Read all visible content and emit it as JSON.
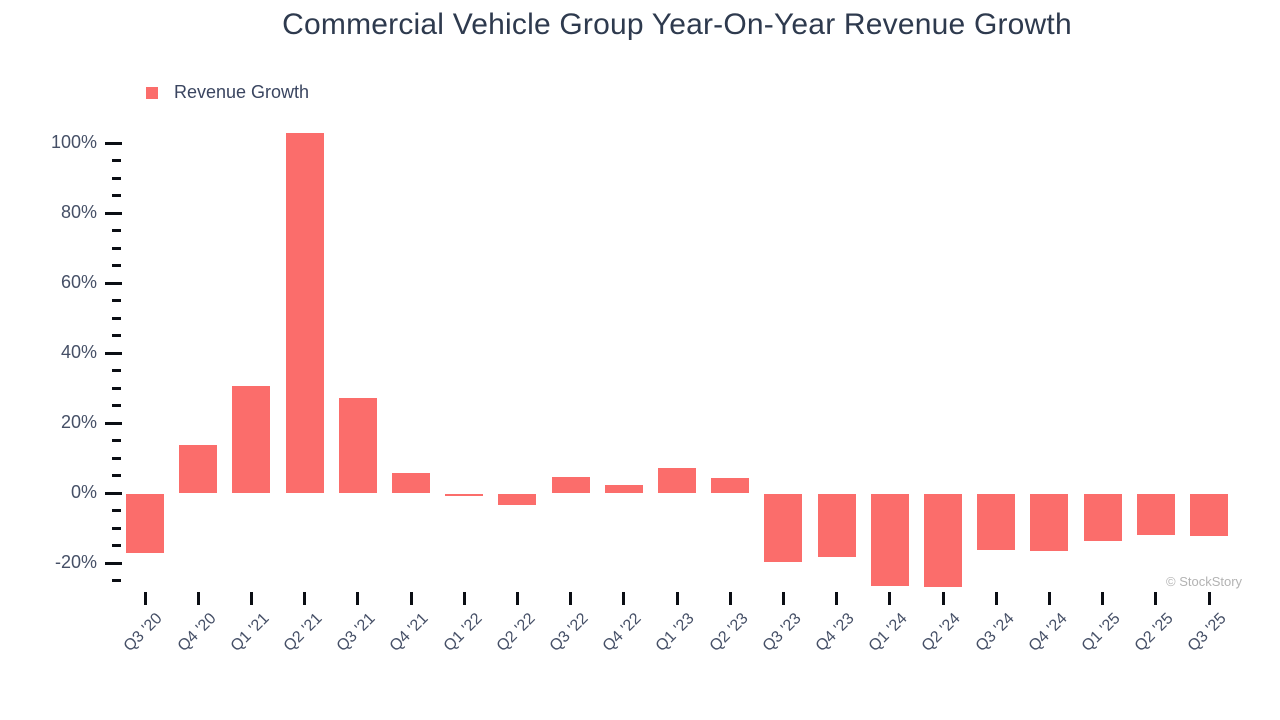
{
  "title": "Commercial Vehicle Group Year-On-Year Revenue Growth",
  "legend": {
    "label": "Revenue Growth",
    "swatch_color": "#FB6D6B"
  },
  "watermark": "© StockStory",
  "colors": {
    "bar": "#FB6D6B",
    "title_text": "#2E3A4E",
    "axis_label": "#454F66",
    "tick_mark": "#0B0E14",
    "watermark": "#B3B3B3"
  },
  "chart_data": {
    "type": "bar",
    "title": "Commercial Vehicle Group Year-On-Year Revenue Growth",
    "series_name": "Revenue Growth",
    "categories": [
      "Q3 '20",
      "Q4 '20",
      "Q1 '21",
      "Q2 '21",
      "Q3 '21",
      "Q4 '21",
      "Q1 '22",
      "Q2 '22",
      "Q3 '22",
      "Q4 '22",
      "Q1 '23",
      "Q2 '23",
      "Q3 '23",
      "Q4 '23",
      "Q1 '24",
      "Q2 '24",
      "Q3 '24",
      "Q4 '24",
      "Q1 '25",
      "Q2 '25",
      "Q3 '25"
    ],
    "values": [
      -16.7,
      13.8,
      30.8,
      103.0,
      27.3,
      5.7,
      -0.4,
      -2.9,
      4.7,
      2.3,
      7.3,
      4.3,
      -19.3,
      -17.8,
      -26.3,
      -26.5,
      -15.9,
      -16.3,
      -13.2,
      -11.5,
      -11.8
    ],
    "unit": "%",
    "xlabel": "",
    "ylabel": "",
    "ylim": [
      -27.9,
      104.4
    ],
    "y_major_ticks": [
      100,
      80,
      60,
      40,
      20,
      0,
      -20
    ],
    "y_major_tick_labels": [
      "100%",
      "80%",
      "60%",
      "40%",
      "20%",
      "0%",
      "-20%"
    ],
    "y_minor_tick_step": 5,
    "y_minor_tick_range": [
      -25,
      95
    ],
    "grid": false,
    "legend_position": "top-left",
    "bar_color": "#FB6D6B"
  }
}
